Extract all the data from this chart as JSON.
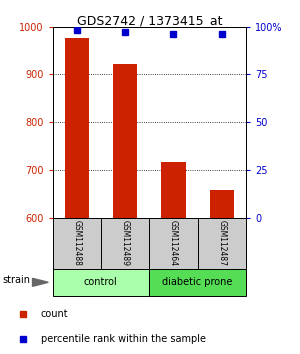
{
  "title": "GDS2742 / 1373415_at",
  "samples": [
    "GSM112488",
    "GSM112489",
    "GSM112464",
    "GSM112487"
  ],
  "counts": [
    975,
    921,
    716,
    657
  ],
  "percentiles": [
    98,
    97,
    96,
    96
  ],
  "ylim_left": [
    600,
    1000
  ],
  "ylim_right": [
    0,
    100
  ],
  "yticks_left": [
    600,
    700,
    800,
    900,
    1000
  ],
  "yticks_right": [
    0,
    25,
    50,
    75,
    100
  ],
  "bar_color": "#cc2200",
  "dot_color": "#0000cc",
  "bar_width": 0.5,
  "groups": [
    {
      "label": "control",
      "color": "#aaffaa",
      "start": 0,
      "end": 1
    },
    {
      "label": "diabetic prone",
      "color": "#55dd55",
      "start": 2,
      "end": 3
    }
  ],
  "strain_label": "strain",
  "legend_items": [
    {
      "color": "#cc2200",
      "label": "count"
    },
    {
      "color": "#0000cc",
      "label": "percentile rank within the sample"
    }
  ],
  "left_tick_color": "#cc2200",
  "right_tick_color": "#0000cc",
  "background_color": "#ffffff",
  "sample_box_color": "#cccccc",
  "title_fontsize": 9,
  "tick_fontsize": 7,
  "legend_fontsize": 7,
  "label_fontsize": 7
}
